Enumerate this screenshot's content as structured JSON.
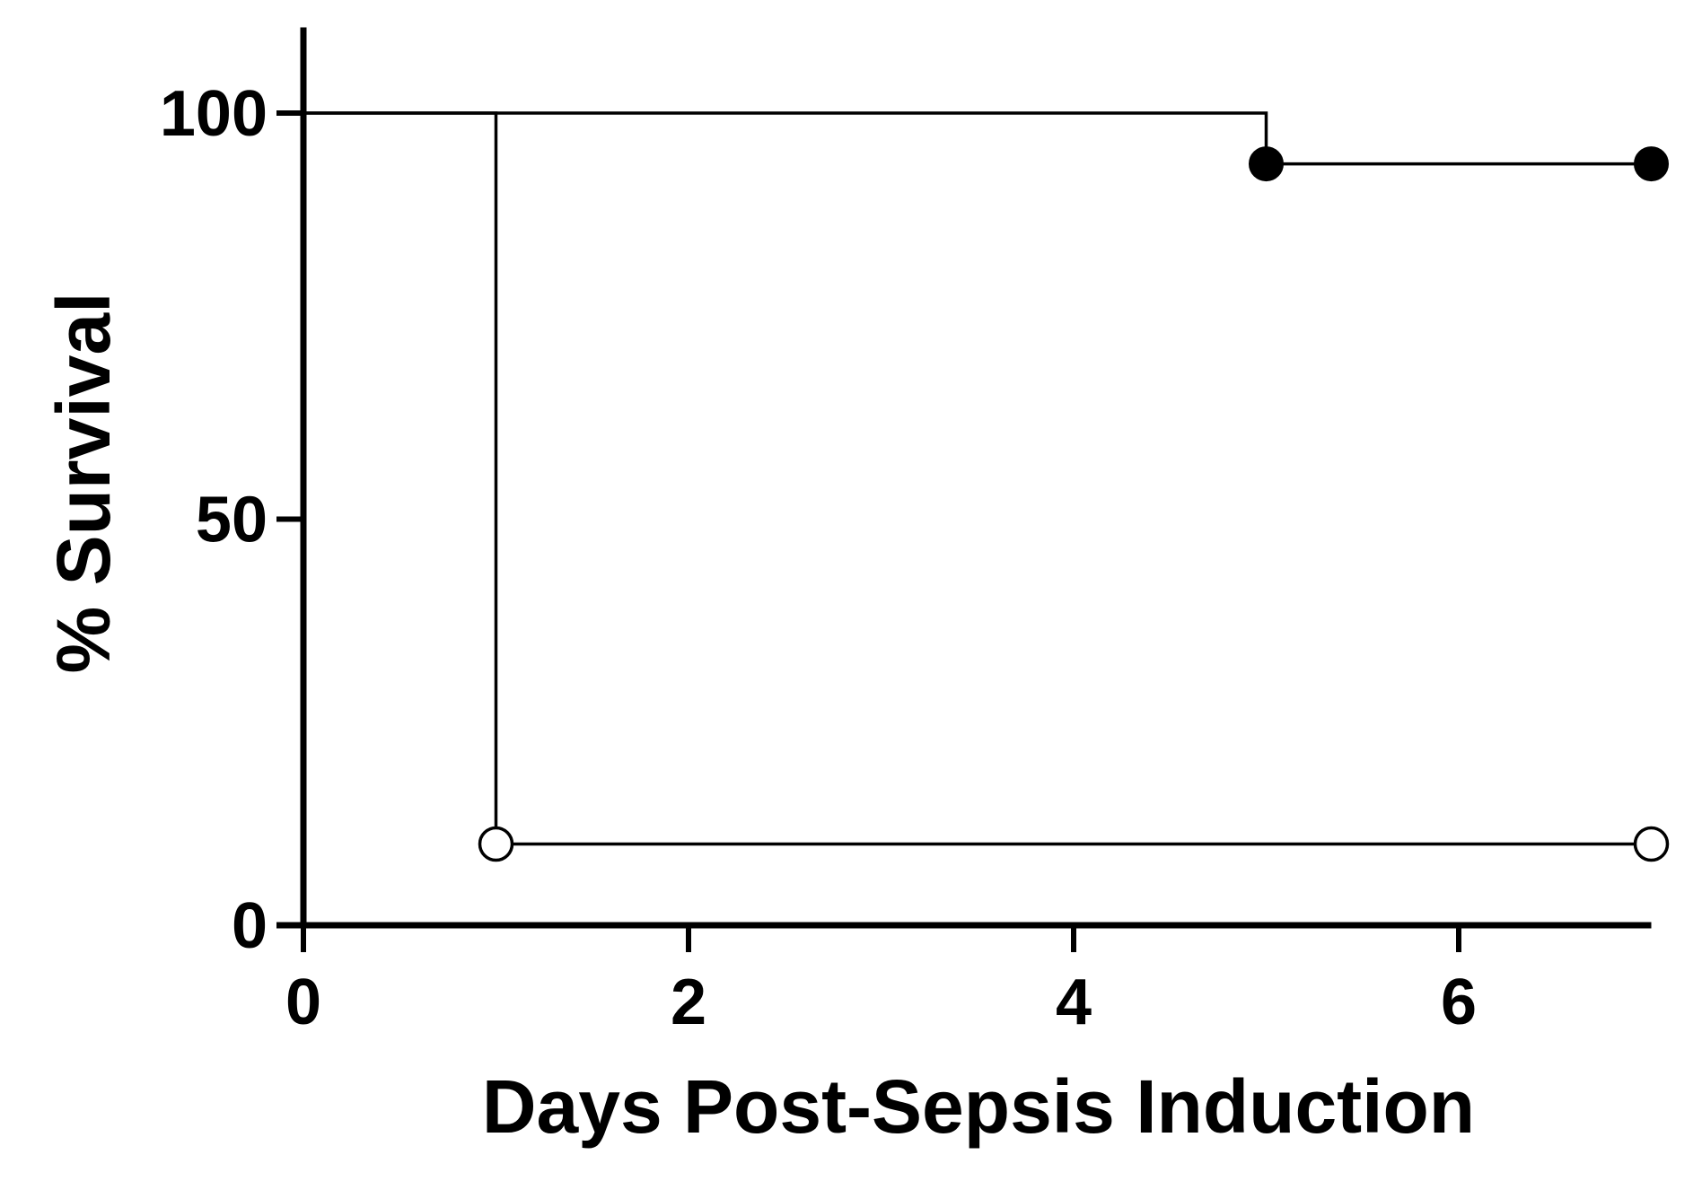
{
  "chart_data": {
    "type": "line",
    "subtype": "kaplan-meier-step",
    "title": "",
    "xlabel": "Days Post-Sepsis Induction",
    "ylabel": "% Survival",
    "xlim": [
      0,
      7
    ],
    "ylim": [
      0,
      110
    ],
    "xticks": [
      0,
      2,
      4,
      6
    ],
    "xtick_labels": [
      "0",
      "2",
      "4",
      "6"
    ],
    "yticks": [
      0,
      50,
      100
    ],
    "ytick_labels": [
      "0",
      "50",
      "100"
    ],
    "grid": false,
    "legend": "none",
    "series": [
      {
        "marker": "filled-circle",
        "color": "#000000",
        "steps": [
          [
            0,
            100
          ],
          [
            5,
            100
          ],
          [
            5,
            93.75
          ],
          [
            7,
            93.75
          ]
        ],
        "markers": [
          [
            5,
            93.75
          ],
          [
            7,
            93.75
          ]
        ]
      },
      {
        "marker": "open-circle",
        "color": "#000000",
        "steps": [
          [
            0,
            100
          ],
          [
            1,
            100
          ],
          [
            1,
            10
          ],
          [
            7,
            10
          ]
        ],
        "markers": [
          [
            1,
            10
          ],
          [
            7,
            10
          ]
        ]
      }
    ]
  }
}
